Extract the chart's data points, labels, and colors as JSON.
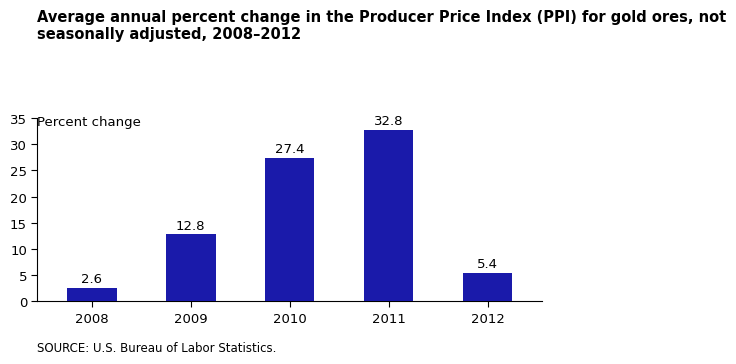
{
  "title": "Average annual percent change in the Producer Price Index (PPI) for gold ores, not\nseasonally adjusted, 2008–2012",
  "ylabel": "Percent change",
  "source": "SOURCE: U.S. Bureau of Labor Statistics.",
  "categories": [
    "2008",
    "2009",
    "2010",
    "2011",
    "2012"
  ],
  "values": [
    2.6,
    12.8,
    27.4,
    32.8,
    5.4
  ],
  "bar_color": "#1a1aaa",
  "ylim": [
    0,
    35
  ],
  "yticks": [
    0,
    5,
    10,
    15,
    20,
    25,
    30,
    35
  ],
  "background_color": "#ffffff",
  "title_fontsize": 10.5,
  "ylabel_fontsize": 9.5,
  "tick_fontsize": 9.5,
  "source_fontsize": 8.5,
  "bar_label_fontsize": 9.5,
  "bar_width": 0.5
}
